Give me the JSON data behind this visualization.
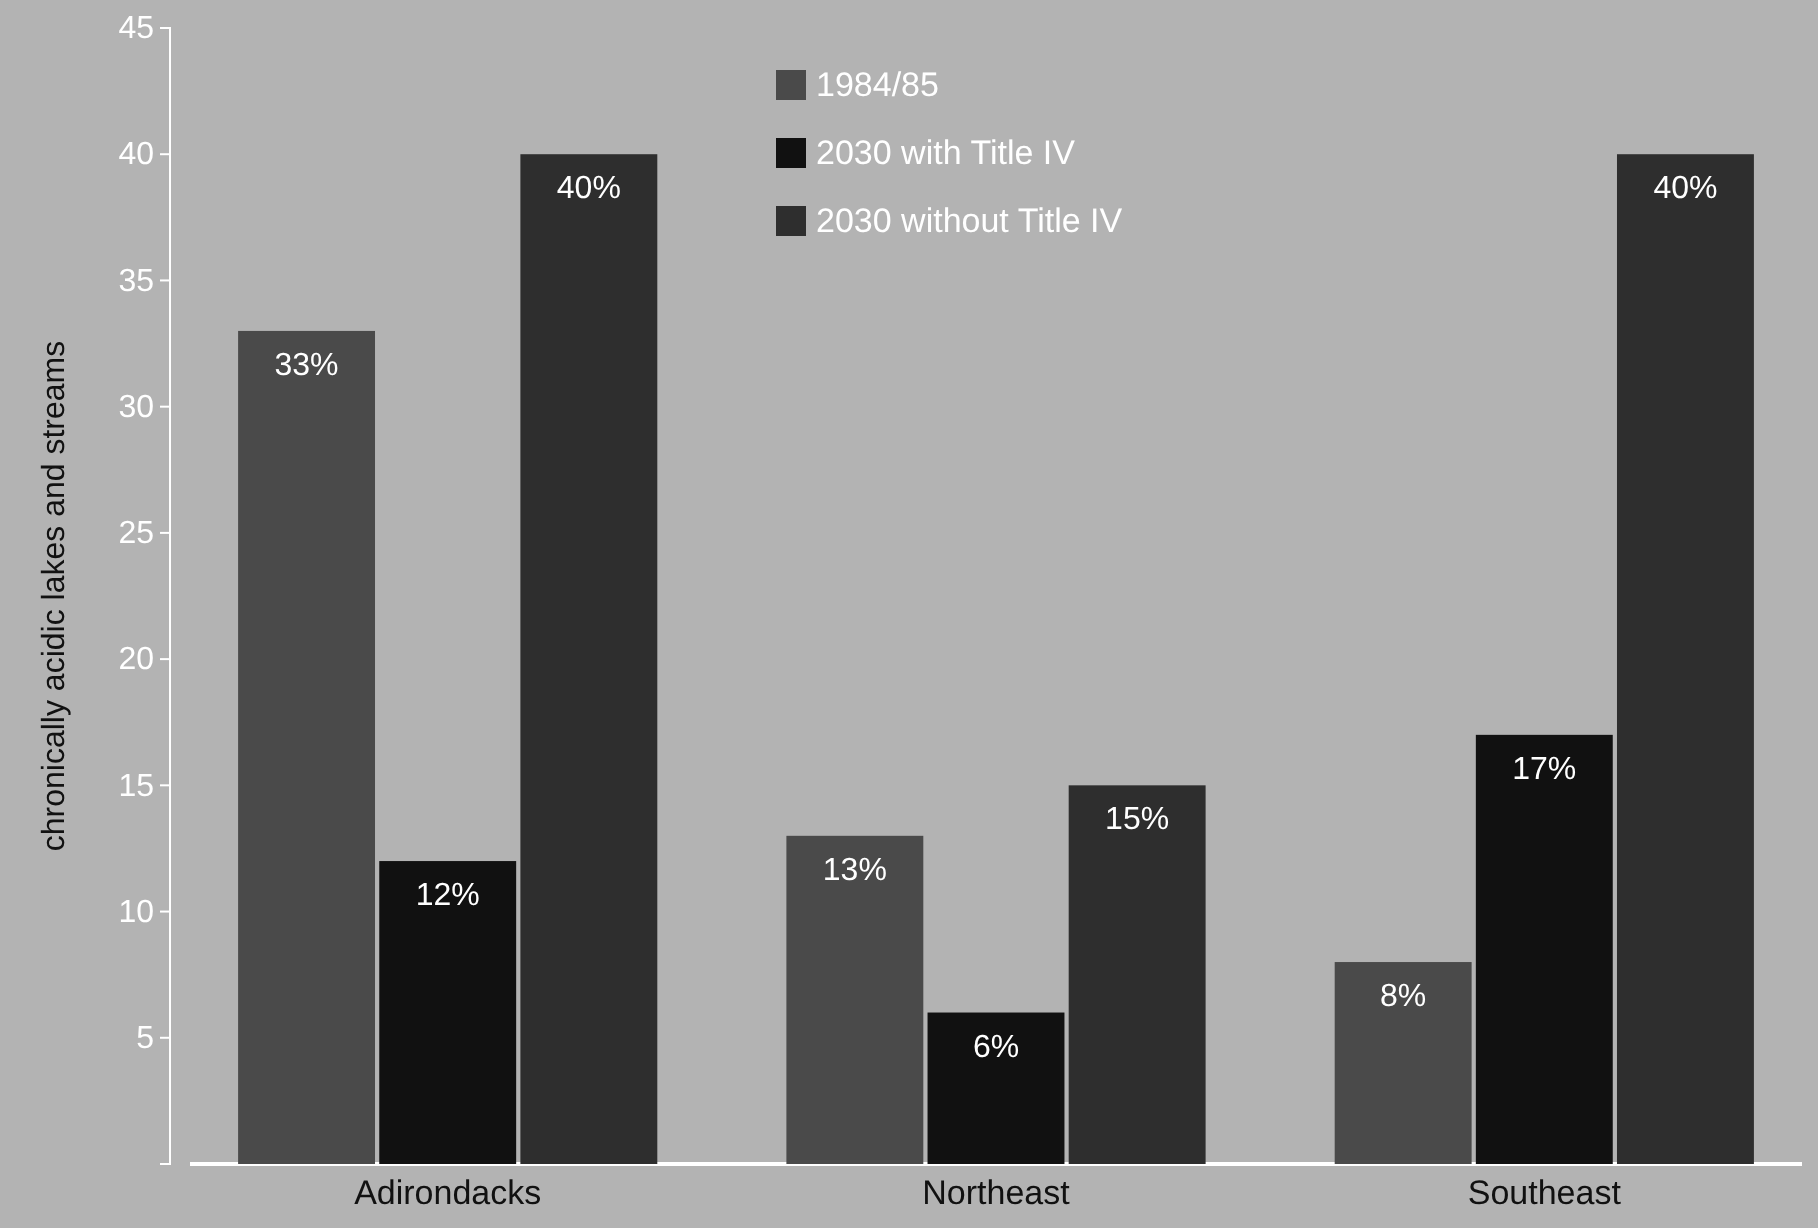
{
  "chart_data": {
    "type": "bar",
    "ylabel": "chronically acidic lakes and streams",
    "categories": [
      "Adirondacks",
      "Northeast",
      "Southeast"
    ],
    "series": [
      {
        "name": "1984/85",
        "color": "#4a4a4a",
        "values": [
          33,
          13,
          8
        ],
        "value_labels": [
          "33%",
          "13%",
          "8%"
        ]
      },
      {
        "name": "2030 with Title IV",
        "color": "#111111",
        "values": [
          12,
          6,
          17
        ],
        "value_labels": [
          "12%",
          "6%",
          "17%"
        ]
      },
      {
        "name": "2030 without Title IV",
        "color": "#2e2e2e",
        "values": [
          40,
          15,
          40
        ],
        "value_labels": [
          "40%",
          "15%",
          "40%"
        ]
      }
    ],
    "ylim": [
      0,
      45
    ],
    "yticks": [
      5,
      10,
      15,
      20,
      25,
      30,
      35,
      40,
      45
    ],
    "grid": false,
    "legend": "top"
  }
}
